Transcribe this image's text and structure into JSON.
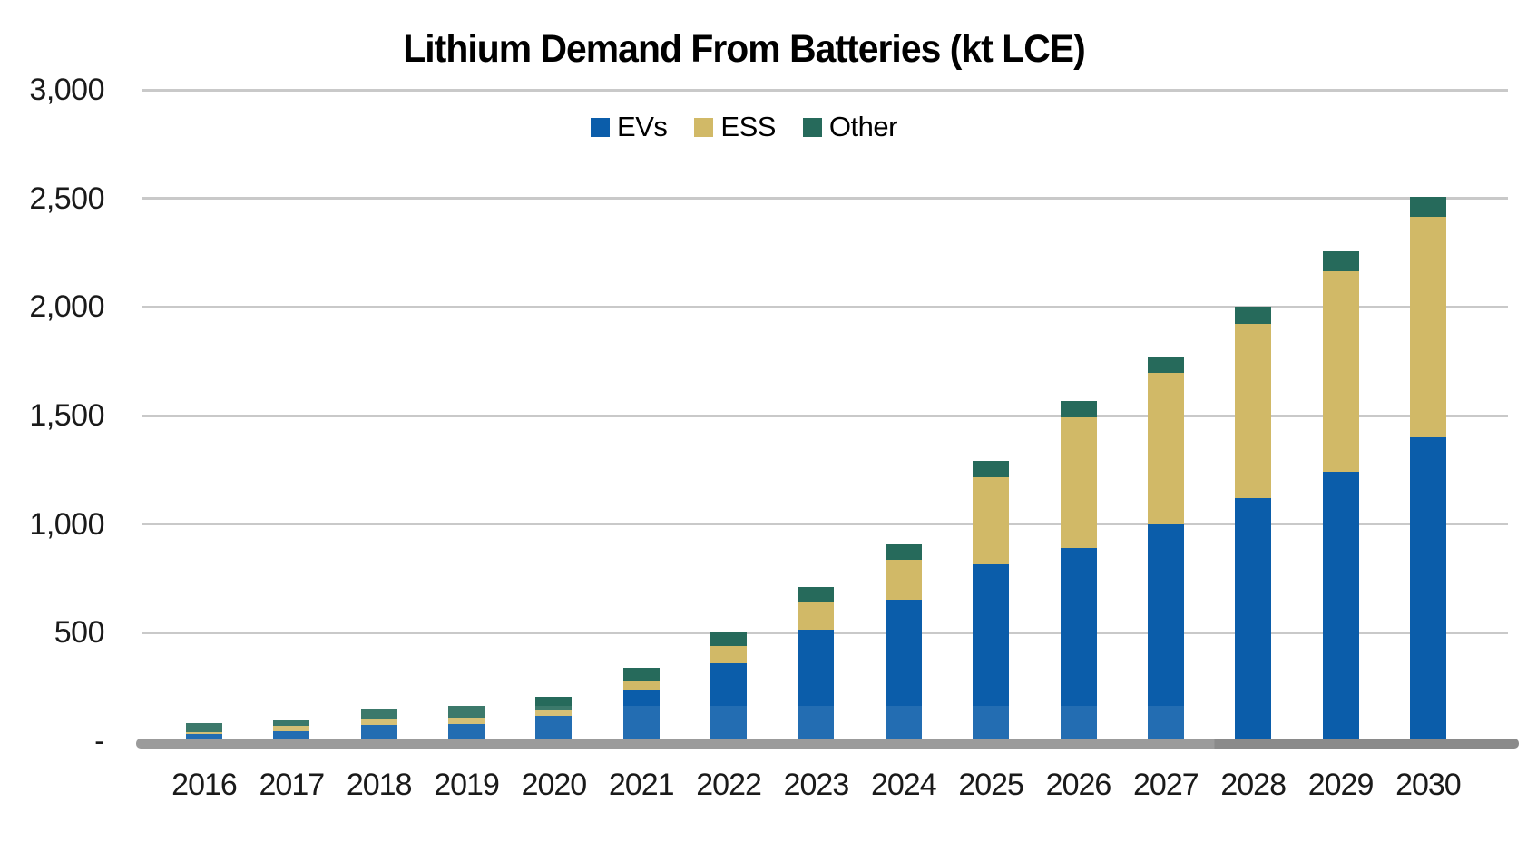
{
  "chart_data": {
    "type": "bar",
    "stacked": true,
    "title": "Lithium Demand From Batteries (kt LCE)",
    "unit": "kt LCE",
    "grid": true,
    "legend_position": "top-center",
    "categories": [
      "2016",
      "2017",
      "2018",
      "2019",
      "2020",
      "2021",
      "2022",
      "2023",
      "2024",
      "2025",
      "2026",
      "2027",
      "2028",
      "2029",
      "2030"
    ],
    "series": [
      {
        "name": "EVs",
        "color": "#0b5daa",
        "values": [
          35,
          45,
          75,
          80,
          115,
          240,
          360,
          515,
          650,
          815,
          890,
          1000,
          1120,
          1240,
          1400
        ]
      },
      {
        "name": "ESS",
        "color": "#d1b967",
        "values": [
          5,
          25,
          30,
          30,
          30,
          35,
          80,
          130,
          185,
          400,
          600,
          695,
          800,
          925,
          1015
        ]
      },
      {
        "name": "Other",
        "color": "#266a5b",
        "values": [
          45,
          30,
          45,
          55,
          60,
          65,
          65,
          65,
          70,
          75,
          75,
          75,
          80,
          90,
          90
        ]
      }
    ],
    "totals": [
      85,
      100,
      150,
      165,
      205,
      340,
      505,
      710,
      905,
      1290,
      1565,
      1770,
      2000,
      2255,
      2505
    ],
    "y_axis": {
      "max": 3000,
      "min": 0,
      "tick_labels": [
        "3,000",
        "2,500",
        "2,000",
        "1,500",
        "1,000",
        "500",
        "-"
      ],
      "tick_values": [
        3000,
        2500,
        2000,
        1500,
        1000,
        500,
        0
      ]
    },
    "colors": {
      "gridline": "#c9c9c9",
      "axis_line": "#9b9b9b",
      "text": "#1a1a1a",
      "background": "#ffffff"
    }
  }
}
